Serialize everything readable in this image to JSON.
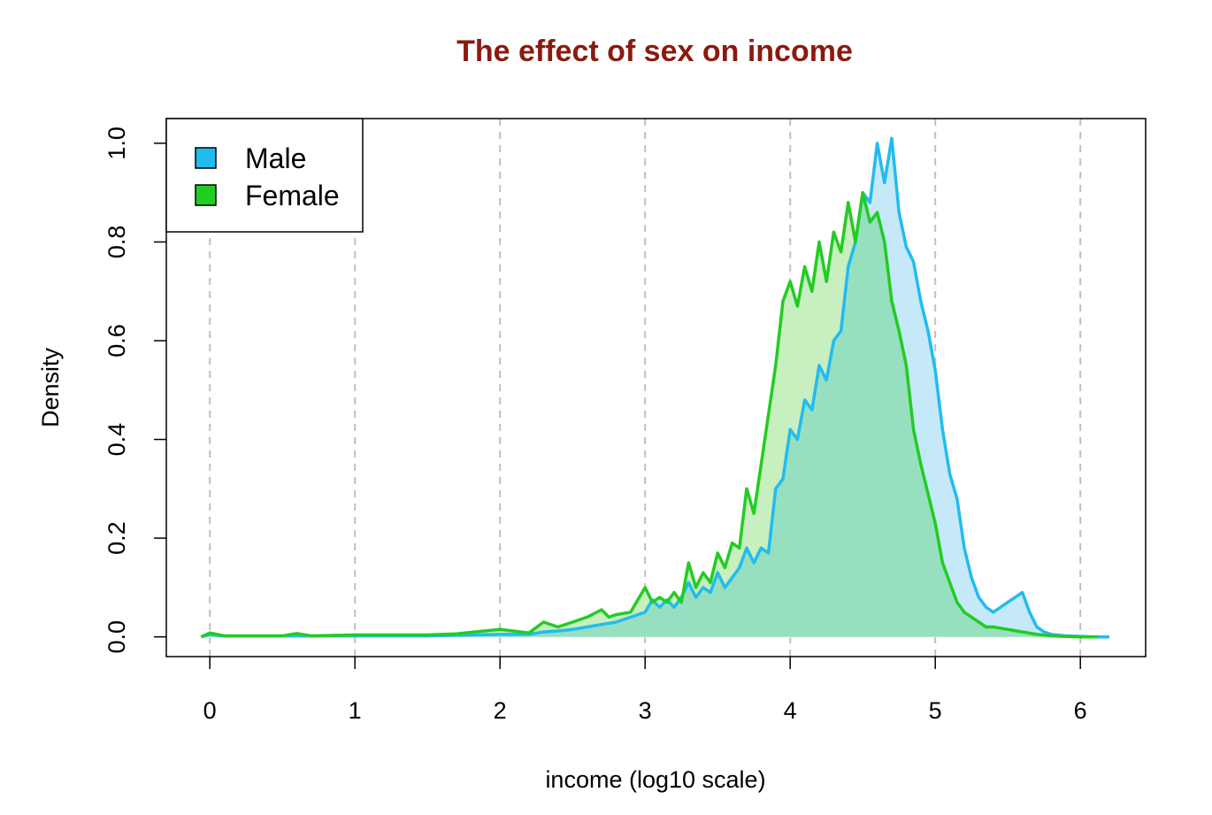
{
  "chart_data": {
    "type": "area",
    "title": "The effect of sex on income",
    "xlabel": "income (log10 scale)",
    "ylabel": "Density",
    "xlim": [
      -0.3,
      6.45
    ],
    "ylim": [
      -0.04,
      1.05
    ],
    "x_ticks": [
      0,
      1,
      2,
      3,
      4,
      5,
      6
    ],
    "y_ticks": [
      0.0,
      0.2,
      0.4,
      0.6,
      0.8,
      1.0
    ],
    "x_tick_labels": [
      "0",
      "1",
      "2",
      "3",
      "4",
      "5",
      "6"
    ],
    "y_tick_labels": [
      "0.0",
      "0.2",
      "0.4",
      "0.6",
      "0.8",
      "1.0"
    ],
    "grid": "vertical dashed at x ticks",
    "legend_position": "top-left",
    "colors": {
      "title": "#8b1a0e",
      "male_line": "#22bbf0",
      "male_fill": "#c5e9f8",
      "female_line": "#22cc22",
      "female_fill": "#c8efc0",
      "overlap_fill": "#96e0bf",
      "grid": "#c0c0c0"
    },
    "series": [
      {
        "name": "Male",
        "x": [
          -0.06,
          0.0,
          0.1,
          0.5,
          1.0,
          1.5,
          2.0,
          2.2,
          2.3,
          2.4,
          2.5,
          2.6,
          2.7,
          2.8,
          2.9,
          3.0,
          3.05,
          3.1,
          3.15,
          3.2,
          3.25,
          3.3,
          3.35,
          3.4,
          3.45,
          3.5,
          3.55,
          3.6,
          3.65,
          3.7,
          3.75,
          3.8,
          3.85,
          3.9,
          3.95,
          4.0,
          4.05,
          4.1,
          4.15,
          4.2,
          4.25,
          4.3,
          4.35,
          4.4,
          4.45,
          4.5,
          4.55,
          4.6,
          4.65,
          4.7,
          4.75,
          4.8,
          4.85,
          4.9,
          4.95,
          5.0,
          5.05,
          5.1,
          5.15,
          5.2,
          5.25,
          5.3,
          5.35,
          5.4,
          5.45,
          5.5,
          5.55,
          5.6,
          5.65,
          5.7,
          5.75,
          5.8,
          5.9,
          6.0,
          6.1,
          6.2
        ],
        "y": [
          0.0,
          0.005,
          0.002,
          0.002,
          0.002,
          0.002,
          0.005,
          0.005,
          0.01,
          0.012,
          0.015,
          0.02,
          0.025,
          0.03,
          0.04,
          0.05,
          0.075,
          0.06,
          0.075,
          0.06,
          0.08,
          0.11,
          0.08,
          0.1,
          0.09,
          0.13,
          0.1,
          0.12,
          0.14,
          0.18,
          0.15,
          0.18,
          0.17,
          0.3,
          0.32,
          0.42,
          0.4,
          0.48,
          0.46,
          0.55,
          0.52,
          0.6,
          0.62,
          0.75,
          0.8,
          0.9,
          0.88,
          1.0,
          0.92,
          1.01,
          0.86,
          0.79,
          0.76,
          0.68,
          0.62,
          0.54,
          0.42,
          0.33,
          0.28,
          0.18,
          0.12,
          0.08,
          0.06,
          0.05,
          0.06,
          0.07,
          0.08,
          0.09,
          0.05,
          0.02,
          0.01,
          0.005,
          0.002,
          0.001,
          0.0,
          0.0
        ]
      },
      {
        "name": "Female",
        "x": [
          -0.06,
          0.0,
          0.1,
          0.5,
          0.6,
          0.7,
          1.0,
          1.3,
          1.5,
          1.7,
          2.0,
          2.2,
          2.3,
          2.4,
          2.5,
          2.6,
          2.7,
          2.75,
          2.8,
          2.9,
          3.0,
          3.05,
          3.1,
          3.15,
          3.2,
          3.25,
          3.3,
          3.35,
          3.4,
          3.45,
          3.5,
          3.55,
          3.6,
          3.65,
          3.7,
          3.75,
          3.8,
          3.85,
          3.9,
          3.95,
          4.0,
          4.05,
          4.1,
          4.15,
          4.2,
          4.25,
          4.3,
          4.35,
          4.4,
          4.45,
          4.5,
          4.55,
          4.6,
          4.65,
          4.7,
          4.75,
          4.8,
          4.85,
          4.9,
          4.95,
          5.0,
          5.05,
          5.1,
          5.15,
          5.2,
          5.25,
          5.3,
          5.35,
          5.4,
          5.5,
          5.6,
          5.7,
          5.8,
          6.0,
          6.12
        ],
        "y": [
          0.0,
          0.008,
          0.002,
          0.002,
          0.007,
          0.002,
          0.004,
          0.004,
          0.004,
          0.006,
          0.015,
          0.008,
          0.03,
          0.02,
          0.03,
          0.04,
          0.055,
          0.04,
          0.045,
          0.05,
          0.1,
          0.07,
          0.08,
          0.07,
          0.09,
          0.07,
          0.15,
          0.1,
          0.13,
          0.11,
          0.17,
          0.14,
          0.19,
          0.18,
          0.3,
          0.25,
          0.35,
          0.45,
          0.55,
          0.68,
          0.72,
          0.67,
          0.75,
          0.7,
          0.8,
          0.72,
          0.82,
          0.78,
          0.88,
          0.8,
          0.9,
          0.84,
          0.86,
          0.8,
          0.68,
          0.62,
          0.55,
          0.42,
          0.35,
          0.29,
          0.23,
          0.15,
          0.11,
          0.07,
          0.05,
          0.04,
          0.03,
          0.02,
          0.02,
          0.015,
          0.01,
          0.005,
          0.002,
          0.0,
          0.0
        ]
      }
    ]
  }
}
